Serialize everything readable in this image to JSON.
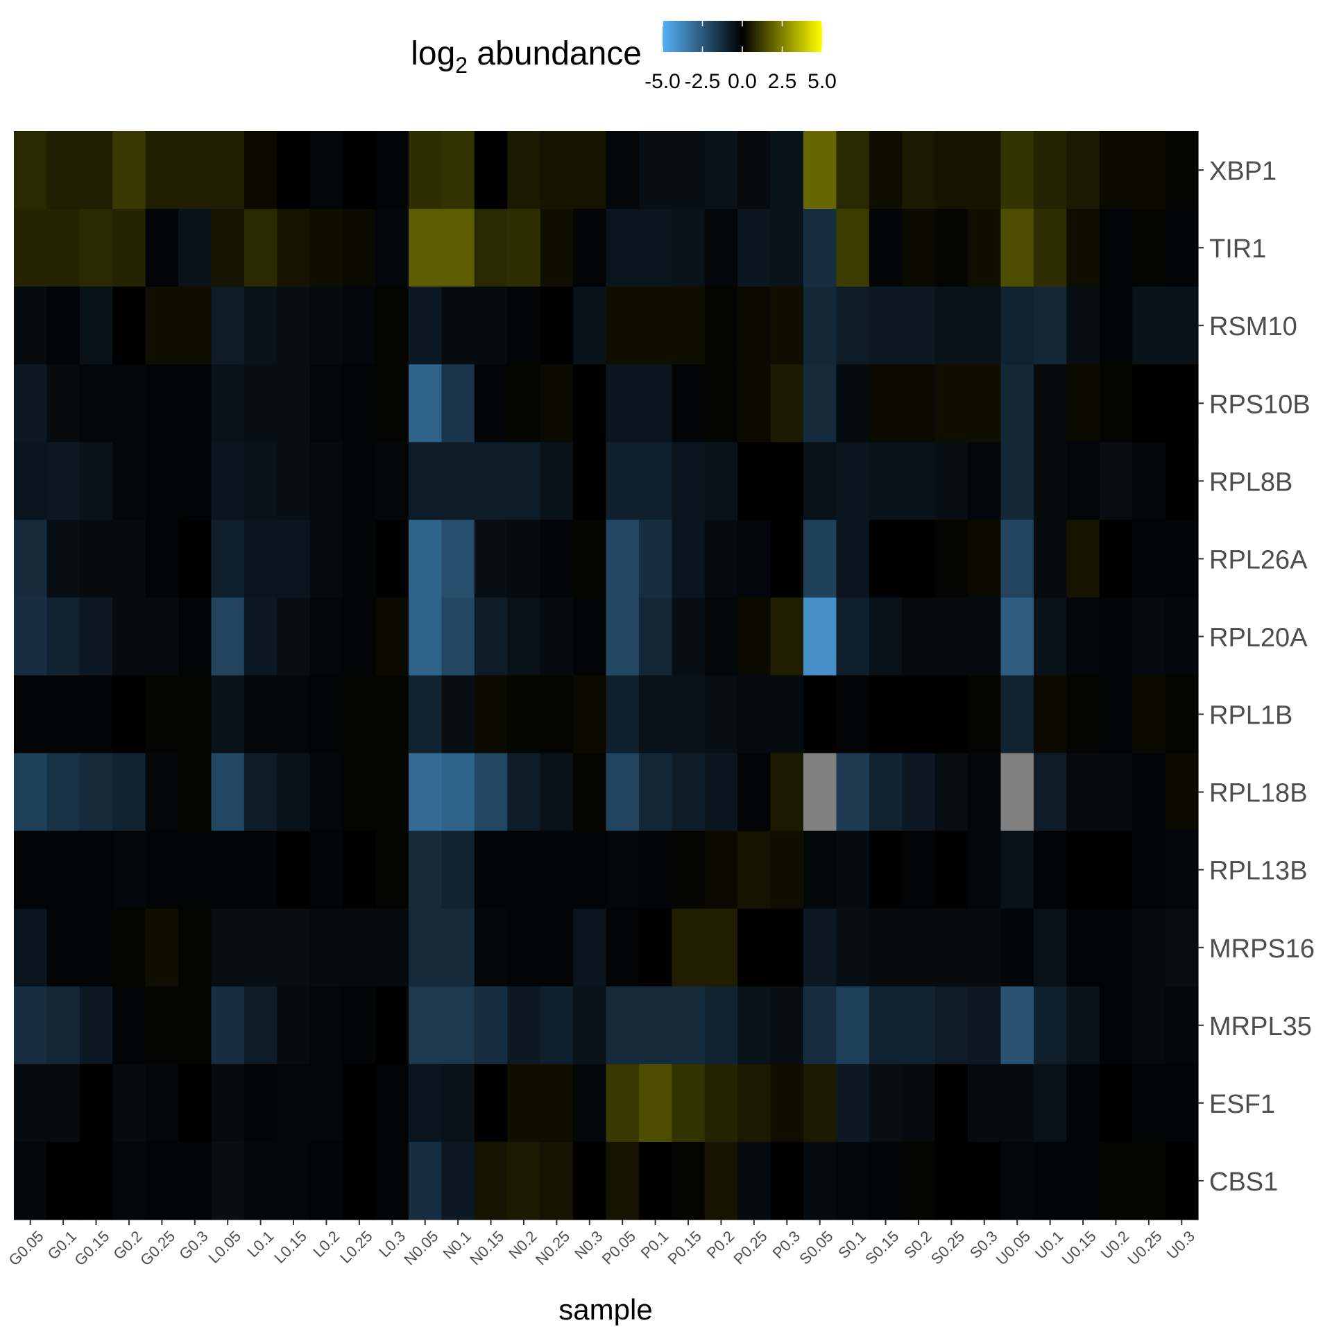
{
  "chart_data": {
    "type": "heatmap",
    "title": "",
    "xlabel": "sample",
    "ylabel": "",
    "legend": {
      "title_main": "log",
      "title_sub": "2",
      "title_rest": " abundance",
      "placement": "top",
      "range": [
        -5.0,
        5.0
      ],
      "tick_values": [
        -5.0,
        -2.5,
        0.0,
        2.5,
        5.0
      ],
      "tick_labels": [
        "-5.0",
        "-2.5",
        "0.0",
        "2.5",
        "5.0"
      ]
    },
    "colors": {
      "low": "#56B1F7",
      "mid": "#000000",
      "high": "#FFFF00",
      "na": "#808080"
    },
    "grid": false,
    "x_categories": [
      "G0.05",
      "G0.1",
      "G0.15",
      "G0.2",
      "G0.25",
      "G0.3",
      "L0.05",
      "L0.1",
      "L0.15",
      "L0.2",
      "L0.25",
      "L0.3",
      "N0.05",
      "N0.1",
      "N0.15",
      "N0.2",
      "N0.25",
      "N0.3",
      "P0.05",
      "P0.1",
      "P0.15",
      "P0.2",
      "P0.25",
      "P0.3",
      "S0.05",
      "S0.1",
      "S0.15",
      "S0.2",
      "S0.25",
      "S0.3",
      "U0.05",
      "U0.1",
      "U0.15",
      "U0.2",
      "U0.25",
      "U0.3"
    ],
    "y_categories": [
      "XBP1",
      "TIR1",
      "RSM10",
      "RPS10B",
      "RPL8B",
      "RPL26A",
      "RPL20A",
      "RPL1B",
      "RPL18B",
      "RPL13B",
      "MRPS16",
      "MRPL35",
      "ESF1",
      "CBS1"
    ],
    "values": [
      [
        0.8,
        0.6,
        0.6,
        1.1,
        0.6,
        0.6,
        0.6,
        0.2,
        0.0,
        -0.2,
        0.0,
        -0.1,
        0.9,
        1.0,
        0.0,
        0.5,
        0.4,
        0.4,
        -0.2,
        -0.4,
        -0.4,
        -0.5,
        -0.3,
        -0.5,
        2.0,
        0.8,
        0.3,
        0.5,
        0.4,
        0.4,
        1.0,
        0.7,
        0.5,
        0.2,
        0.2,
        0.1
      ],
      [
        0.7,
        0.7,
        0.8,
        0.7,
        -0.1,
        -0.5,
        0.4,
        0.8,
        0.4,
        0.3,
        0.2,
        -0.2,
        1.8,
        1.8,
        0.8,
        0.9,
        0.3,
        -0.1,
        -0.6,
        -0.6,
        -0.5,
        -0.2,
        -0.6,
        -0.5,
        -1.3,
        1.2,
        -0.1,
        0.2,
        0.1,
        0.3,
        1.5,
        0.9,
        0.3,
        -0.1,
        0.1,
        -0.1
      ],
      [
        -0.3,
        -0.1,
        -0.5,
        0.0,
        0.3,
        0.3,
        -0.8,
        -0.5,
        -0.4,
        -0.3,
        -0.2,
        0.1,
        -0.7,
        -0.3,
        -0.3,
        -0.1,
        0.0,
        -0.5,
        0.3,
        0.3,
        0.3,
        0.1,
        0.2,
        0.3,
        -1.1,
        -0.8,
        -0.7,
        -0.7,
        -0.5,
        -0.5,
        -1.0,
        -1.1,
        -0.4,
        -0.1,
        -0.5,
        -0.5
      ],
      [
        -0.7,
        -0.3,
        -0.2,
        -0.2,
        -0.1,
        -0.1,
        -0.5,
        -0.4,
        -0.4,
        -0.2,
        -0.1,
        0.1,
        -2.8,
        -1.5,
        -0.1,
        0.1,
        0.2,
        0.0,
        -0.6,
        -0.6,
        -0.1,
        0.1,
        0.2,
        0.5,
        -1.2,
        -0.3,
        0.2,
        0.2,
        0.3,
        0.3,
        -1.1,
        -0.3,
        0.2,
        0.1,
        0.0,
        0.0
      ],
      [
        -0.6,
        -0.7,
        -0.5,
        -0.2,
        -0.1,
        -0.1,
        -0.6,
        -0.5,
        -0.4,
        -0.3,
        -0.1,
        -0.2,
        -0.8,
        -0.8,
        -0.8,
        -0.8,
        -0.5,
        0.0,
        -0.9,
        -0.9,
        -0.6,
        -0.5,
        0.0,
        0.0,
        -0.5,
        -0.6,
        -0.5,
        -0.5,
        -0.4,
        -0.2,
        -1.1,
        -0.3,
        -0.2,
        -0.4,
        -0.2,
        0.0
      ],
      [
        -1.2,
        -0.4,
        -0.3,
        -0.3,
        -0.1,
        0.0,
        -0.9,
        -0.6,
        -0.6,
        -0.3,
        -0.1,
        0.0,
        -2.8,
        -2.2,
        -0.4,
        -0.3,
        -0.1,
        0.1,
        -2.0,
        -1.3,
        -0.6,
        -0.3,
        -0.2,
        0.0,
        -1.8,
        -0.6,
        0.0,
        0.0,
        0.1,
        0.2,
        -1.9,
        -0.3,
        0.4,
        0.0,
        -0.1,
        -0.1
      ],
      [
        -1.3,
        -1.0,
        -0.7,
        -0.3,
        -0.3,
        -0.1,
        -1.9,
        -0.7,
        -0.4,
        -0.2,
        -0.1,
        0.2,
        -2.8,
        -2.0,
        -0.8,
        -0.5,
        -0.3,
        -0.1,
        -2.0,
        -1.1,
        -0.4,
        -0.2,
        0.2,
        0.6,
        -4.0,
        -0.9,
        -0.5,
        -0.3,
        -0.3,
        -0.3,
        -2.6,
        -0.5,
        -0.2,
        -0.1,
        -0.3,
        -0.2
      ],
      [
        -0.1,
        -0.1,
        -0.1,
        0.0,
        0.1,
        0.1,
        -0.5,
        -0.2,
        -0.2,
        -0.1,
        0.1,
        0.1,
        -1.0,
        -0.4,
        0.2,
        0.1,
        0.1,
        0.2,
        -0.9,
        -0.5,
        -0.5,
        -0.4,
        -0.3,
        -0.3,
        0.0,
        -0.1,
        0.0,
        0.0,
        0.0,
        0.1,
        -1.0,
        0.2,
        0.1,
        -0.1,
        0.2,
        0.1
      ],
      [
        -1.8,
        -1.4,
        -1.2,
        -1.0,
        -0.2,
        0.1,
        -2.0,
        -0.8,
        -0.5,
        -0.2,
        0.1,
        0.1,
        -3.0,
        -2.8,
        -2.0,
        -0.8,
        -0.5,
        0.1,
        -1.9,
        -1.1,
        -0.8,
        -0.6,
        -0.1,
        0.5,
        null,
        -1.7,
        -1.0,
        -0.7,
        -0.4,
        -0.2,
        null,
        -0.8,
        -0.3,
        -0.3,
        -0.1,
        0.2
      ],
      [
        -0.1,
        -0.1,
        -0.1,
        -0.2,
        -0.1,
        -0.1,
        -0.1,
        -0.1,
        0.0,
        -0.1,
        0.0,
        0.1,
        -1.2,
        -1.0,
        -0.1,
        -0.1,
        -0.1,
        -0.1,
        -0.2,
        -0.1,
        0.1,
        0.2,
        0.4,
        0.3,
        -0.2,
        -0.3,
        0.0,
        -0.1,
        0.0,
        -0.2,
        -0.5,
        -0.1,
        0.0,
        0.0,
        -0.1,
        -0.2
      ],
      [
        -0.6,
        -0.1,
        -0.1,
        0.1,
        0.3,
        0.1,
        -0.4,
        -0.4,
        -0.4,
        -0.3,
        -0.3,
        -0.3,
        -1.2,
        -1.2,
        -0.2,
        -0.1,
        -0.1,
        -0.6,
        -0.1,
        0.0,
        0.6,
        0.6,
        0.0,
        0.0,
        -0.7,
        -0.4,
        -0.3,
        -0.3,
        -0.3,
        -0.3,
        -0.1,
        -0.5,
        -0.1,
        -0.1,
        -0.3,
        -0.4
      ],
      [
        -1.3,
        -1.1,
        -0.7,
        -0.1,
        0.1,
        0.1,
        -1.3,
        -0.8,
        -0.3,
        -0.2,
        -0.1,
        0.0,
        -1.6,
        -1.6,
        -1.3,
        -0.7,
        -0.9,
        -0.5,
        -1.2,
        -1.2,
        -1.2,
        -1.0,
        -0.5,
        -0.4,
        -1.3,
        -1.8,
        -1.0,
        -1.0,
        -0.8,
        -0.7,
        -2.3,
        -0.9,
        -0.5,
        -0.1,
        -0.3,
        -0.2
      ],
      [
        -0.3,
        -0.3,
        0.0,
        -0.3,
        -0.2,
        0.0,
        -0.3,
        -0.1,
        -0.2,
        -0.2,
        0.0,
        -0.1,
        -0.6,
        -0.5,
        0.0,
        0.3,
        0.3,
        -0.2,
        1.1,
        1.5,
        1.0,
        0.7,
        0.5,
        0.3,
        0.5,
        -0.7,
        -0.4,
        -0.3,
        0.0,
        -0.3,
        -0.3,
        -0.5,
        -0.1,
        0.0,
        -0.1,
        -0.1
      ],
      [
        -0.2,
        0.0,
        0.0,
        -0.2,
        -0.1,
        -0.1,
        -0.4,
        -0.2,
        -0.2,
        -0.1,
        0.0,
        -0.1,
        -1.3,
        -0.7,
        0.4,
        0.5,
        0.4,
        0.0,
        0.4,
        0.0,
        0.1,
        0.4,
        -0.3,
        0.0,
        -0.3,
        -0.2,
        -0.1,
        0.1,
        0.0,
        0.0,
        -0.2,
        -0.1,
        -0.1,
        0.1,
        0.1,
        0.0
      ]
    ]
  }
}
